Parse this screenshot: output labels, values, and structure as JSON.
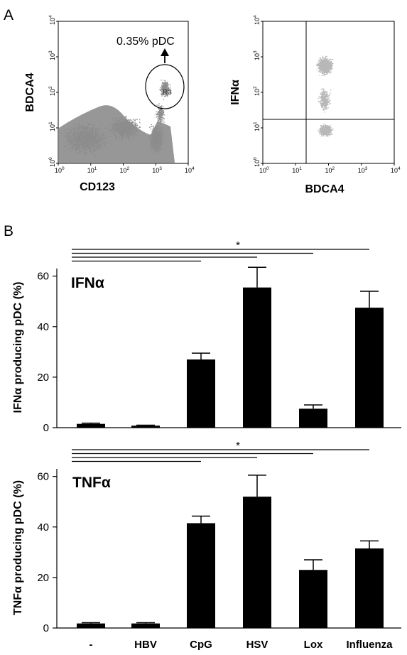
{
  "figure": {
    "panel_a_letter": "A",
    "panel_b_letter": "B"
  },
  "flow": {
    "left": {
      "xlabel": "CD123",
      "ylabel": "BDCA4",
      "gate_label": "0.35% pDC",
      "gate_name": "R3",
      "dot_color": "#8c8c8c",
      "ticks": [
        {
          "base": "10",
          "exp": "0"
        },
        {
          "base": "10",
          "exp": "1"
        },
        {
          "base": "10",
          "exp": "2"
        },
        {
          "base": "10",
          "exp": "3"
        },
        {
          "base": "10",
          "exp": "4"
        }
      ]
    },
    "right": {
      "xlabel": "BDCA4",
      "ylabel": "IFNα",
      "dot_color": "#b8b8b8",
      "ticks": [
        {
          "base": "10",
          "exp": "0"
        },
        {
          "base": "10",
          "exp": "1"
        },
        {
          "base": "10",
          "exp": "2"
        },
        {
          "base": "10",
          "exp": "3"
        },
        {
          "base": "10",
          "exp": "4"
        }
      ]
    }
  },
  "chart_data": [
    {
      "type": "bar",
      "title": "IFNα",
      "ylabel": "IFNα producing pDC (%)",
      "categories": [
        "-",
        "HBV",
        "CpG",
        "HSV",
        "Lox",
        "Influenza"
      ],
      "values": [
        1.5,
        0.8,
        27,
        55.5,
        7.5,
        47.5
      ],
      "errors": [
        0.3,
        0.2,
        2.5,
        8,
        1.5,
        6.5
      ],
      "ylim": [
        0,
        63
      ],
      "yticks": [
        "0",
        "20",
        "40",
        "60"
      ],
      "significance_marker": "*",
      "significance_from": "-",
      "significance_to": [
        "CpG",
        "HSV",
        "Lox",
        "Influenza"
      ],
      "bar_color": "#000000"
    },
    {
      "type": "bar",
      "title": "TNFα",
      "ylabel": "TNFα producing pDC (%)",
      "categories": [
        "-",
        "HBV",
        "CpG",
        "HSV",
        "Lox",
        "Influenza"
      ],
      "values": [
        1.8,
        1.8,
        41.5,
        52,
        23,
        31.5
      ],
      "errors": [
        0.3,
        0.3,
        2.8,
        8.5,
        4,
        3
      ],
      "ylim": [
        0,
        63
      ],
      "yticks": [
        "0",
        "20",
        "40",
        "60"
      ],
      "significance_marker": "*",
      "significance_from": "-",
      "significance_to": [
        "CpG",
        "HSV",
        "Lox",
        "Influenza"
      ],
      "bar_color": "#000000"
    }
  ]
}
